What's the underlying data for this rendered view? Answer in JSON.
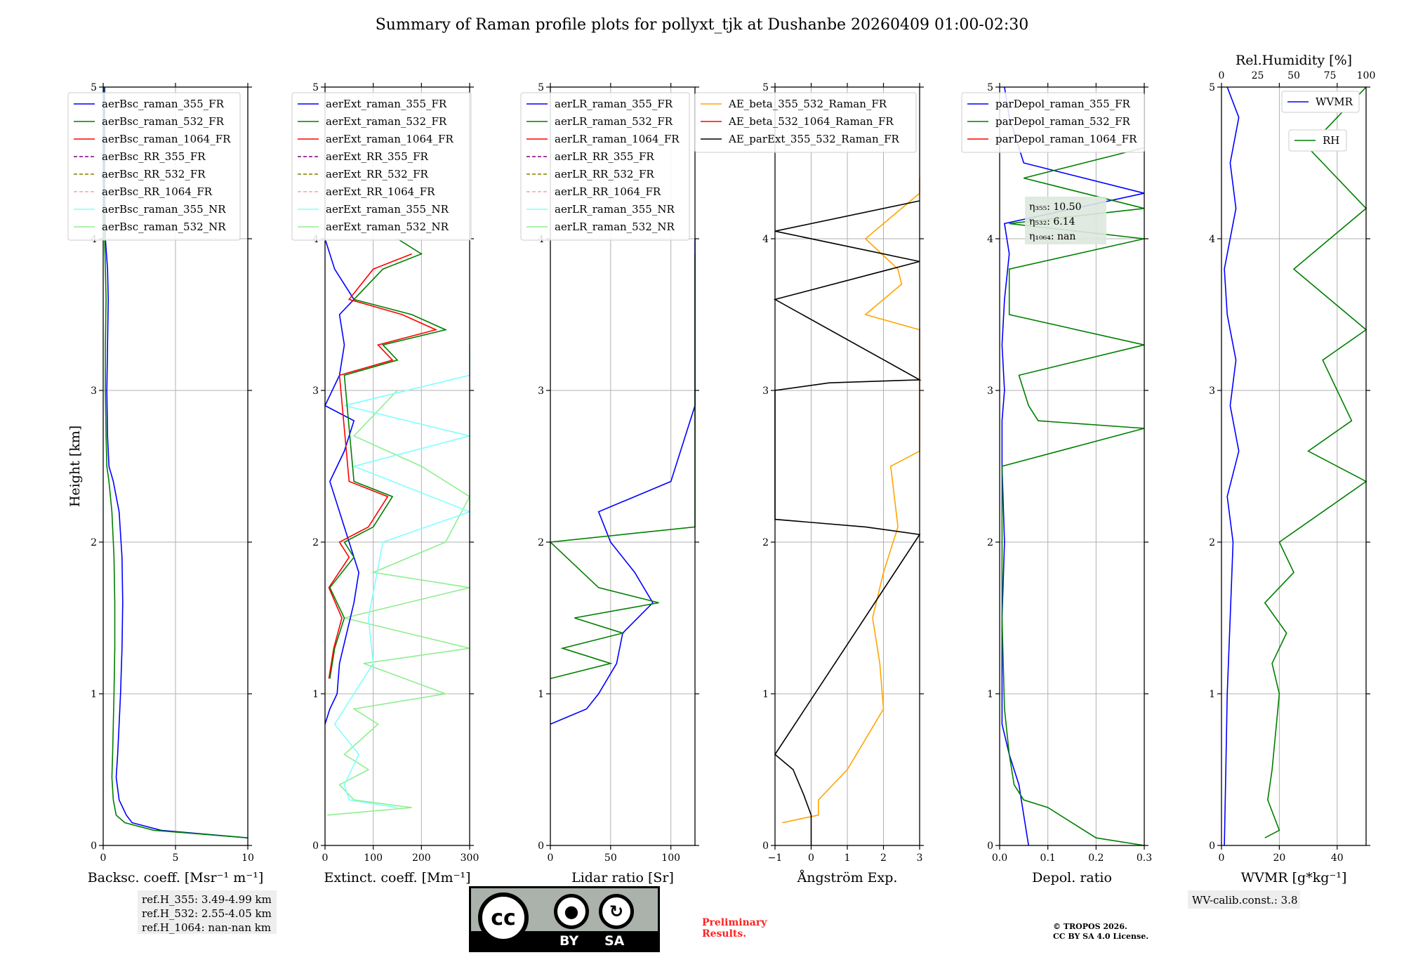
{
  "title": "Summary of Raman profile plots for pollyxt_tjk at Dushanbe 20260409 01:00-02:30",
  "colors": {
    "blue": "#0000ff",
    "green": "#007f00",
    "red": "#ff0000",
    "purple": "#800080",
    "olive": "#808000",
    "pink": "#ff9e9e",
    "cyan": "#80ffff",
    "lightgreen": "#90ee90",
    "orange": "#ffa500",
    "magenta": "#ff00ff",
    "black": "#000000"
  },
  "chart_data": [
    {
      "type": "line",
      "id": "bsc",
      "xlabel": "Backsc. coeff. [Msr⁻¹ m⁻¹]",
      "ylabel": "Height [km]",
      "xlim": [
        0,
        10
      ],
      "ylim": [
        0,
        5
      ],
      "xticks": [
        0,
        5,
        10
      ],
      "xtick_labels": [
        "0",
        "5",
        "10"
      ],
      "yticks": [
        0,
        1,
        2,
        3,
        4,
        5
      ],
      "ytick_labels": [
        "0",
        "1",
        "2",
        "3",
        "4",
        "5"
      ],
      "legend": [
        "aerBsc_raman_355_FR",
        "aerBsc_raman_532_FR",
        "aerBsc_raman_1064_FR",
        "aerBsc_RR_355_FR",
        "aerBsc_RR_532_FR",
        "aerBsc_RR_1064_FR",
        "aerBsc_raman_355_NR",
        "aerBsc_raman_532_NR"
      ],
      "series": [
        {
          "name": "aerBsc_raman_355_FR",
          "color": "#0000ff",
          "h": [
            0.05,
            0.1,
            0.15,
            0.2,
            0.3,
            0.45,
            0.6,
            0.8,
            1.0,
            1.3,
            1.6,
            1.9,
            2.2,
            2.4,
            2.5,
            2.7,
            3.0,
            3.3,
            3.6,
            3.8,
            4.0,
            4.3,
            4.7,
            5.0
          ],
          "v": [
            10,
            4,
            2,
            1.6,
            1.1,
            0.9,
            1.0,
            1.1,
            1.2,
            1.3,
            1.35,
            1.3,
            1.1,
            0.7,
            0.4,
            0.3,
            0.25,
            0.3,
            0.35,
            0.3,
            0.15,
            0.1,
            0.1,
            0.1
          ]
        },
        {
          "name": "aerBsc_raman_532_FR",
          "color": "#007f00",
          "h": [
            0.05,
            0.1,
            0.15,
            0.2,
            0.3,
            0.45,
            0.6,
            0.8,
            1.0,
            1.3,
            1.6,
            1.9,
            2.2,
            2.4,
            2.5,
            2.7,
            3.0,
            3.3,
            3.6,
            3.8,
            4.0,
            4.3,
            4.7,
            5.0
          ],
          "v": [
            10,
            3.5,
            1.5,
            0.9,
            0.7,
            0.6,
            0.65,
            0.7,
            0.75,
            0.8,
            0.8,
            0.75,
            0.6,
            0.4,
            0.25,
            0.2,
            0.15,
            0.15,
            0.2,
            0.15,
            0.1,
            0.05,
            0.05,
            0.05
          ]
        }
      ]
    },
    {
      "type": "line",
      "id": "ext",
      "xlabel": "Extinct. coeff. [Mm⁻¹]",
      "xlim": [
        0,
        300
      ],
      "ylim": [
        0,
        5
      ],
      "xticks": [
        0,
        100,
        200,
        300
      ],
      "xtick_labels": [
        "0",
        "100",
        "200",
        "300"
      ],
      "yticks": [
        0,
        1,
        2,
        3,
        4,
        5
      ],
      "ytick_labels": [
        "0",
        "1",
        "2",
        "3",
        "4",
        "5"
      ],
      "legend": [
        "aerExt_raman_355_FR",
        "aerExt_raman_532_FR",
        "aerExt_raman_1064_FR",
        "aerExt_RR_355_FR",
        "aerExt_RR_532_FR",
        "aerExt_RR_1064_FR",
        "aerExt_raman_355_NR",
        "aerExt_raman_532_NR"
      ],
      "series": [
        {
          "name": "aerExt_raman_532_NR",
          "color": "#90ee90",
          "h": [
            0.2,
            0.25,
            0.3,
            0.4,
            0.5,
            0.6,
            0.8,
            0.9,
            1.0,
            1.2,
            1.3,
            1.5,
            1.7,
            1.8,
            2.0,
            2.3,
            2.5,
            2.7,
            3.0
          ],
          "v": [
            5,
            180,
            60,
            30,
            90,
            40,
            110,
            60,
            250,
            80,
            300,
            40,
            300,
            100,
            250,
            300,
            200,
            60,
            150
          ]
        },
        {
          "name": "aerExt_raman_355_NR",
          "color": "#80ffff",
          "h": [
            0.25,
            0.3,
            0.4,
            0.6,
            0.8,
            1.0,
            1.2,
            1.5,
            2.0,
            2.2,
            2.5,
            2.7,
            2.9,
            3.1,
            3.3
          ],
          "v": [
            150,
            50,
            40,
            70,
            20,
            60,
            100,
            90,
            120,
            300,
            60,
            300,
            40,
            300,
            300
          ]
        },
        {
          "name": "aerExt_raman_355_FR",
          "color": "#0000ff",
          "h": [
            0.8,
            0.9,
            1.0,
            1.2,
            1.4,
            1.6,
            1.8,
            2.0,
            2.2,
            2.4,
            2.6,
            2.8,
            2.9,
            3.1,
            3.3,
            3.5,
            3.6,
            3.8,
            4.0
          ],
          "v": [
            0,
            10,
            25,
            30,
            45,
            60,
            70,
            50,
            30,
            10,
            40,
            60,
            0,
            30,
            40,
            30,
            60,
            20,
            0
          ]
        },
        {
          "name": "aerExt_raman_532_FR",
          "color": "#007f00",
          "h": [
            1.1,
            1.3,
            1.5,
            1.7,
            1.9,
            2.0,
            2.1,
            2.2,
            2.3,
            2.4,
            3.1,
            3.2,
            3.3,
            3.4,
            3.5,
            3.6,
            3.8,
            3.9,
            4.0
          ],
          "v": [
            10,
            20,
            40,
            10,
            60,
            40,
            100,
            120,
            140,
            60,
            40,
            150,
            120,
            250,
            180,
            60,
            120,
            200,
            150
          ]
        },
        {
          "name": "aerExt_raman_1064_FR",
          "color": "#ff0000",
          "h": [
            1.1,
            1.3,
            1.5,
            1.7,
            1.9,
            2.0,
            2.1,
            2.2,
            2.3,
            2.4,
            3.1,
            3.2,
            3.3,
            3.4,
            3.5,
            3.6,
            3.8,
            3.9
          ],
          "v": [
            8,
            18,
            35,
            8,
            50,
            30,
            90,
            110,
            130,
            50,
            30,
            140,
            110,
            230,
            160,
            50,
            100,
            180
          ]
        }
      ]
    },
    {
      "type": "line",
      "id": "lr",
      "xlabel": "Lidar ratio [Sr]",
      "xlim": [
        0,
        120
      ],
      "ylim": [
        0,
        5
      ],
      "xticks": [
        0,
        50,
        100
      ],
      "xtick_labels": [
        "0",
        "50",
        "100"
      ],
      "yticks": [
        0,
        1,
        2,
        3,
        4,
        5
      ],
      "ytick_labels": [
        "0",
        "1",
        "2",
        "3",
        "4",
        "5"
      ],
      "legend": [
        "aerLR_raman_355_FR",
        "aerLR_raman_532_FR",
        "aerLR_raman_1064_FR",
        "aerLR_RR_355_FR",
        "aerLR_RR_532_FR",
        "aerLR_RR_1064_FR",
        "aerLR_raman_355_NR",
        "aerLR_raman_532_NR"
      ],
      "series": [
        {
          "name": "aerLR_raman_355_FR",
          "color": "#0000ff",
          "h": [
            0.8,
            0.9,
            1.0,
            1.2,
            1.4,
            1.6,
            1.8,
            2.0,
            2.2,
            2.4,
            2.9,
            3.3,
            3.6,
            4.0
          ],
          "v": [
            0,
            30,
            40,
            55,
            60,
            85,
            70,
            50,
            40,
            100,
            120,
            120,
            120,
            120
          ]
        },
        {
          "name": "aerLR_raman_532_FR",
          "color": "#007f00",
          "h": [
            1.1,
            1.2,
            1.3,
            1.4,
            1.5,
            1.6,
            1.7,
            2.0,
            2.1,
            2.4,
            2.8,
            3.3,
            3.9
          ],
          "v": [
            0,
            50,
            10,
            60,
            20,
            90,
            40,
            0,
            120,
            120,
            120,
            120,
            120
          ]
        }
      ]
    },
    {
      "type": "line",
      "id": "ae",
      "xlabel": "Ångström Exp.",
      "xlim": [
        -1,
        3
      ],
      "ylim": [
        0,
        5
      ],
      "xticks": [
        -1,
        0,
        1,
        2,
        3
      ],
      "xtick_labels": [
        "−1",
        "0",
        "1",
        "2",
        "3"
      ],
      "yticks": [
        0,
        1,
        2,
        3,
        4,
        5
      ],
      "ytick_labels": [
        "0",
        "1",
        "2",
        "3",
        "4",
        "5"
      ],
      "legend": [
        "AE_beta_355_532_Raman_FR",
        "AE_beta_532_1064_Raman_FR",
        "AE_parExt_355_532_Raman_FR"
      ],
      "series": [
        {
          "name": "AE_beta_355_532_Raman_FR",
          "color": "#ffa500",
          "h": [
            0.15,
            0.2,
            0.3,
            0.5,
            0.7,
            0.9,
            1.2,
            1.5,
            1.8,
            2.1,
            2.3,
            2.5,
            2.6,
            3.4,
            3.5,
            3.7,
            3.8,
            4.0,
            4.3,
            4.4
          ],
          "v": [
            -0.8,
            0.2,
            0.2,
            1.0,
            1.5,
            2.0,
            1.9,
            1.7,
            2.0,
            2.4,
            2.3,
            2.2,
            3.0,
            3.0,
            1.5,
            2.5,
            2.4,
            1.5,
            3.0,
            3.0
          ]
        },
        {
          "name": "AE_parExt_355_532_Raman_FR",
          "color": "#000000",
          "h": [
            0.0,
            0.2,
            0.33,
            0.5,
            0.6,
            2.05,
            2.1,
            2.15,
            3.0,
            3.05,
            3.07,
            3.6,
            3.85,
            4.05,
            4.25
          ],
          "v": [
            0,
            0,
            -0.2,
            -0.5,
            -1,
            3,
            1.5,
            -1,
            -1,
            0.5,
            3,
            -1,
            3,
            -1,
            3
          ]
        }
      ]
    },
    {
      "type": "line",
      "id": "depol",
      "xlabel": "Depol. ratio",
      "xlim": [
        0,
        0.3
      ],
      "ylim": [
        0,
        5
      ],
      "xticks": [
        0,
        0.1,
        0.2,
        0.3
      ],
      "xtick_labels": [
        "0.0",
        "0.1",
        "0.2",
        "0.3"
      ],
      "yticks": [
        0,
        1,
        2,
        3,
        4,
        5
      ],
      "ytick_labels": [
        "0",
        "1",
        "2",
        "3",
        "4",
        "5"
      ],
      "legend": [
        "parDepol_raman_355_FR",
        "parDepol_raman_532_FR",
        "parDepol_raman_1064_FR"
      ],
      "annotations": [
        "η₃₅₅: 10.50",
        "η₅₃₂: 6.14",
        "η₁₀₆₄: nan"
      ],
      "series": [
        {
          "name": "parDepol_raman_355_FR",
          "color": "#0000ff",
          "h": [
            0.0,
            0.2,
            0.4,
            0.6,
            0.8,
            1.0,
            1.5,
            2.0,
            2.5,
            2.8,
            3.0,
            3.3,
            3.6,
            3.9,
            4.1,
            4.3,
            4.5,
            4.8,
            5.0
          ],
          "v": [
            0.06,
            0.05,
            0.04,
            0.02,
            0.005,
            0.005,
            0.005,
            0.01,
            0.005,
            0.005,
            0.01,
            0.005,
            0.01,
            0.02,
            0.01,
            0.3,
            0.05,
            0.02,
            0.01
          ]
        },
        {
          "name": "parDepol_raman_532_FR",
          "color": "#007f00",
          "h": [
            0.0,
            0.05,
            0.15,
            0.25,
            0.3,
            0.4,
            0.6,
            0.9,
            1.5,
            2.0,
            2.5,
            2.75,
            2.8,
            2.9,
            3.1,
            3.3,
            3.5,
            3.8,
            4.0,
            4.1,
            4.2,
            4.4,
            4.6
          ],
          "v": [
            0.3,
            0.2,
            0.15,
            0.1,
            0.05,
            0.03,
            0.02,
            0.01,
            0.005,
            0.005,
            0.005,
            0.3,
            0.08,
            0.06,
            0.04,
            0.3,
            0.02,
            0.02,
            0.3,
            0.02,
            0.3,
            0.05,
            0.3
          ]
        }
      ]
    },
    {
      "type": "line",
      "id": "wv",
      "xlabel": "WVMR [g*kg⁻¹]",
      "x2label": "Rel.Humidity [%]",
      "xlim": [
        0,
        50
      ],
      "x2lim": [
        0,
        100
      ],
      "ylim": [
        0,
        5
      ],
      "xticks": [
        0,
        20,
        40
      ],
      "xtick_labels": [
        "0",
        "20",
        "40"
      ],
      "x2ticks": [
        0,
        25,
        50,
        75,
        100
      ],
      "x2tick_labels": [
        "0",
        "25",
        "50",
        "75",
        "100"
      ],
      "yticks": [
        0,
        1,
        2,
        3,
        4,
        5
      ],
      "ytick_labels": [
        "0",
        "1",
        "2",
        "3",
        "4",
        "5"
      ],
      "legend": [
        "WVMR",
        "RH"
      ],
      "series": [
        {
          "name": "WVMR",
          "color": "#0000ff",
          "axis": "x",
          "h": [
            0.0,
            0.5,
            1.0,
            1.5,
            2.0,
            2.3,
            2.6,
            2.9,
            3.2,
            3.5,
            3.8,
            4.2,
            4.5,
            4.8,
            5.0
          ],
          "v": [
            1,
            1.5,
            2,
            3,
            4,
            2,
            6,
            3,
            5,
            2,
            1,
            5,
            3,
            6,
            2
          ]
        },
        {
          "name": "RH",
          "color": "#007f00",
          "axis": "x2",
          "h": [
            0.05,
            0.1,
            0.3,
            0.5,
            0.8,
            1.0,
            1.2,
            1.4,
            1.6,
            1.8,
            2.0,
            2.2,
            2.4,
            2.6,
            2.8,
            3.0,
            3.2,
            3.4,
            3.8,
            4.2,
            4.6,
            5.0
          ],
          "v": [
            30,
            40,
            32,
            35,
            38,
            40,
            35,
            45,
            30,
            50,
            40,
            70,
            100,
            60,
            90,
            80,
            70,
            100,
            50,
            100,
            60,
            100
          ]
        }
      ]
    }
  ],
  "notes": {
    "refH": [
      "ref.H_355: 3.49-4.99 km",
      "ref.H_532: 2.55-4.05 km",
      "ref.H_1064: nan-nan km"
    ],
    "wv_calib": "WV-calib.const.: 3.8",
    "preliminary": [
      "Preliminary",
      "Results."
    ],
    "copyright": [
      "© TROPOS 2026.",
      "CC BY SA 4.0 License."
    ]
  },
  "license": {
    "cc": "cc",
    "by": "BY",
    "sa": "SA"
  }
}
